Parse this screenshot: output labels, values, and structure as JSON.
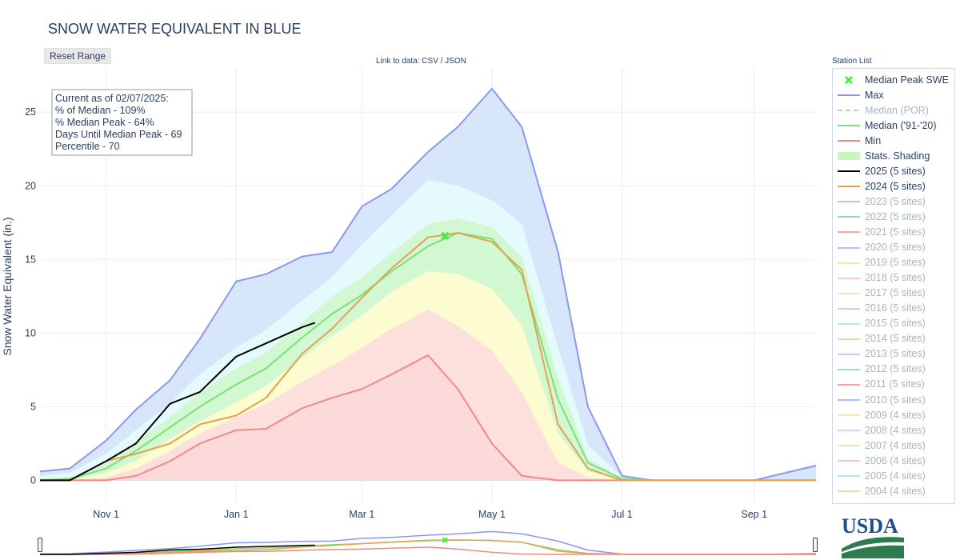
{
  "page": {
    "title": "SNOW WATER EQUIVALENT IN BLUE",
    "reset_label": "Reset Range",
    "link_prefix": "Link to data: ",
    "link_csv": "CSV",
    "link_sep": " / ",
    "link_json": "JSON",
    "station_list_label": "Station List"
  },
  "info_box": {
    "line1": "Current as of 02/07/2025:",
    "line2": "% of Median - 109%",
    "line3": "% Median Peak - 64%",
    "line4": "Days Until Median Peak - 69",
    "line5": "Percentile - 70"
  },
  "legend": [
    {
      "label": "Median Peak SWE",
      "symbol": "x-marker",
      "color": "#44ee44",
      "active": true
    },
    {
      "label": "Max",
      "symbol": "line",
      "color": "#8c98ec",
      "active": true
    },
    {
      "label": "Median (POR)",
      "symbol": "dash",
      "color": "#a9dfa9",
      "active": false
    },
    {
      "label": "Median ('91-'20)",
      "symbol": "line",
      "color": "#7be07b",
      "active": true
    },
    {
      "label": "Min",
      "symbol": "line",
      "color": "#f08a82",
      "active": true
    },
    {
      "label": "Stats. Shading",
      "symbol": "band",
      "color": "#c8f5c0",
      "active": true
    },
    {
      "label": "2025 (5 sites)",
      "symbol": "line",
      "color": "#000000",
      "active": true
    },
    {
      "label": "2024 (5 sites)",
      "symbol": "line",
      "color": "#e8a050",
      "active": true
    },
    {
      "label": "2023 (5 sites)",
      "symbol": "line",
      "color": "#d9b8f0",
      "active": false
    },
    {
      "label": "2022 (5 sites)",
      "symbol": "line",
      "color": "#8fd8c8",
      "active": false
    },
    {
      "label": "2021 (5 sites)",
      "symbol": "line",
      "color": "#f4a8a0",
      "active": false
    },
    {
      "label": "2020 (5 sites)",
      "symbol": "line",
      "color": "#b8bff0",
      "active": false
    },
    {
      "label": "2019 (5 sites)",
      "symbol": "line",
      "color": "#fbe0a8",
      "active": false
    },
    {
      "label": "2018 (5 sites)",
      "symbol": "line",
      "color": "#f2c4ee",
      "active": false
    },
    {
      "label": "2017 (5 sites)",
      "symbol": "line",
      "color": "#d8f0b8",
      "active": false
    },
    {
      "label": "2016 (5 sites)",
      "symbol": "line",
      "color": "#f8c0c8",
      "active": false
    },
    {
      "label": "2015 (5 sites)",
      "symbol": "line",
      "color": "#a8eef0",
      "active": false
    },
    {
      "label": "2014 (5 sites)",
      "symbol": "line",
      "color": "#f6d0b0",
      "active": false
    },
    {
      "label": "2013 (5 sites)",
      "symbol": "line",
      "color": "#dcc0f4",
      "active": false
    },
    {
      "label": "2012 (5 sites)",
      "symbol": "line",
      "color": "#9ee0cc",
      "active": false
    },
    {
      "label": "2011 (5 sites)",
      "symbol": "line",
      "color": "#f4a49c",
      "active": false
    },
    {
      "label": "2010 (5 sites)",
      "symbol": "line",
      "color": "#b4bcee",
      "active": false
    },
    {
      "label": "2009 (4 sites)",
      "symbol": "line",
      "color": "#fbe4b0",
      "active": false
    },
    {
      "label": "2008 (4 sites)",
      "symbol": "line",
      "color": "#f2c8ee",
      "active": false
    },
    {
      "label": "2007 (4 sites)",
      "symbol": "line",
      "color": "#d4f0b8",
      "active": false
    },
    {
      "label": "2006 (4 sites)",
      "symbol": "line",
      "color": "#f8c4cc",
      "active": false
    },
    {
      "label": "2005 (4 sites)",
      "symbol": "line",
      "color": "#ace8f0",
      "active": false
    },
    {
      "label": "2004 (4 sites)",
      "symbol": "line",
      "color": "#f6d4b4",
      "active": false
    }
  ],
  "colors": {
    "max_line": "#8c98ec",
    "max_fill": "#d8e6fc",
    "p90_fill": "#e4fafc",
    "p70_fill": "#d2f8d2",
    "p50_fill": "#fcfcd0",
    "p30_fill": "#fde0dc",
    "min_fill": "#fcdada",
    "median_line": "#7be07b",
    "min_line": "#f08a82",
    "y2025": "#000000",
    "y2024": "#e8a050",
    "peak_marker": "#44ee44",
    "grid": "#e8ecf2",
    "axis_text": "#2a3f5f",
    "usda_text": "#1f4e8c",
    "usda_field": "#2e7b4f"
  },
  "usda_logo_text": "USDA",
  "chart_data": {
    "type": "line",
    "title": "SNOW WATER EQUIVALENT IN BLUE",
    "ylabel": "Snow Water Equivalent (in.)",
    "xlabel": "",
    "x_unit": "date (water year Oct 2024 – Sep 2025)",
    "xlim": [
      "2024-10-01",
      "2025-09-30"
    ],
    "ylim": [
      -1.5,
      28
    ],
    "y_ticks": [
      0,
      5,
      10,
      15,
      20,
      25
    ],
    "x_ticks": [
      {
        "date": "2024-11-01",
        "label": "Nov  1"
      },
      {
        "date": "2025-01-01",
        "label": "Jan  1"
      },
      {
        "date": "2025-03-01",
        "label": "Mar  1"
      },
      {
        "date": "2025-05-01",
        "label": "May  1"
      },
      {
        "date": "2025-07-01",
        "label": "Jul  1"
      },
      {
        "date": "2025-09-01",
        "label": "Sep  1"
      }
    ],
    "grid": true,
    "legend_position": "right",
    "x": [
      "2024-10-01",
      "2024-10-15",
      "2024-11-01",
      "2024-11-15",
      "2024-12-01",
      "2024-12-15",
      "2025-01-01",
      "2025-01-15",
      "2025-02-01",
      "2025-02-15",
      "2025-03-01",
      "2025-03-15",
      "2025-04-01",
      "2025-04-15",
      "2025-05-01",
      "2025-05-15",
      "2025-06-01",
      "2025-06-15",
      "2025-07-01",
      "2025-07-15",
      "2025-08-01",
      "2025-09-01",
      "2025-09-30"
    ],
    "series": [
      {
        "name": "Max",
        "values": [
          0.6,
          0.8,
          2.7,
          4.8,
          6.8,
          9.6,
          13.5,
          14.0,
          15.2,
          15.5,
          18.6,
          19.8,
          22.3,
          24.0,
          26.6,
          24.0,
          15.5,
          5.0,
          0.3,
          0.0,
          0.0,
          0.0,
          1.0
        ]
      },
      {
        "name": "Median ('91-'20)",
        "values": [
          0.0,
          0.1,
          0.8,
          2.0,
          3.6,
          5.0,
          6.5,
          7.6,
          9.7,
          11.3,
          12.6,
          14.2,
          15.9,
          16.8,
          16.4,
          14.0,
          5.5,
          1.2,
          0.1,
          0.0,
          0.0,
          0.0,
          0.0
        ]
      },
      {
        "name": "Min",
        "values": [
          0.0,
          0.0,
          0.0,
          0.3,
          1.3,
          2.5,
          3.4,
          3.5,
          4.9,
          5.6,
          6.2,
          7.2,
          8.5,
          6.2,
          2.5,
          0.3,
          0.0,
          0.0,
          0.0,
          0.0,
          0.0,
          0.0,
          0.0
        ]
      },
      {
        "name": "2024 (5 sites)",
        "values": [
          0.0,
          0.0,
          1.3,
          1.8,
          2.5,
          3.8,
          4.4,
          5.6,
          8.6,
          10.3,
          12.4,
          14.4,
          16.5,
          16.8,
          16.2,
          14.3,
          3.8,
          0.8,
          0.0,
          0.0,
          0.0,
          0.0,
          0.0
        ]
      },
      {
        "name": "2025 (5 sites)",
        "x": [
          "2024-10-01",
          "2024-10-15",
          "2024-11-01",
          "2024-11-15",
          "2024-12-01",
          "2024-12-15",
          "2025-01-01",
          "2025-01-15",
          "2025-02-01",
          "2025-02-07"
        ],
        "values": [
          0.0,
          0.0,
          1.3,
          2.5,
          5.2,
          6.0,
          8.4,
          9.3,
          10.4,
          10.7
        ]
      }
    ],
    "percentile_bands": {
      "p90": [
        0.3,
        0.5,
        1.8,
        3.4,
        5.2,
        7.2,
        9.0,
        10.2,
        12.2,
        13.8,
        16.0,
        18.0,
        20.4,
        20.0,
        19.0,
        17.4,
        9.0,
        2.4,
        0.2,
        0.0,
        0.0,
        0.0,
        0.0
      ],
      "p70": [
        0.1,
        0.2,
        1.2,
        2.6,
        4.3,
        6.0,
        7.6,
        8.7,
        10.7,
        12.5,
        13.8,
        15.5,
        17.4,
        17.8,
        17.2,
        15.2,
        7.0,
        1.5,
        0.1,
        0.0,
        0.0,
        0.0,
        0.0
      ],
      "p30": [
        0.0,
        0.0,
        0.5,
        1.3,
        2.8,
        4.0,
        5.3,
        6.4,
        8.3,
        9.8,
        11.2,
        12.8,
        14.2,
        14.0,
        13.0,
        10.5,
        3.2,
        0.6,
        0.0,
        0.0,
        0.0,
        0.0,
        0.0
      ],
      "p10": [
        0.0,
        0.0,
        0.2,
        0.8,
        2.0,
        3.2,
        4.3,
        5.2,
        6.7,
        7.8,
        9.0,
        10.3,
        11.6,
        10.5,
        8.8,
        6.0,
        1.2,
        0.2,
        0.0,
        0.0,
        0.0,
        0.0,
        0.0
      ]
    },
    "median_peak": {
      "date": "2025-04-09",
      "value": 16.6
    }
  }
}
